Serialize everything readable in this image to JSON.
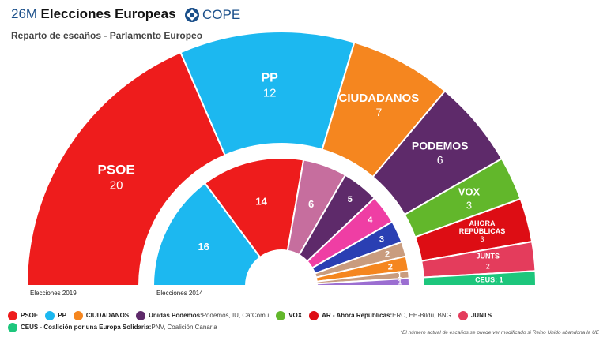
{
  "header": {
    "prefix": "26M",
    "title": "Elecciones Europeas",
    "logo_text": "COPE",
    "subtitle": "Reparto de escaños - Parlamento Europeo"
  },
  "chart_data": [
    {
      "type": "pie",
      "title": "Elecciones 2019",
      "series": [
        {
          "name": "PSOE",
          "value": 20,
          "color": "#ee1c1c"
        },
        {
          "name": "PP",
          "value": 12,
          "color": "#1cb8f0"
        },
        {
          "name": "CIUDADANOS",
          "value": 7,
          "color": "#f5861f"
        },
        {
          "name": "PODEMOS",
          "value": 6,
          "color": "#5e2a6a"
        },
        {
          "name": "VOX",
          "value": 3,
          "color": "#62b72b"
        },
        {
          "name": "AHORA REPÚBLICAS",
          "value": 3,
          "color": "#dd0d14"
        },
        {
          "name": "JUNTS",
          "value": 2,
          "color": "#e43c5c"
        },
        {
          "name": "CEUS",
          "value": 1,
          "color": "#1dc67c"
        }
      ]
    },
    {
      "type": "pie",
      "title": "Elecciones 2014",
      "values": [
        16,
        14,
        6,
        5,
        4,
        3,
        2,
        2,
        1,
        1
      ],
      "colors": [
        "#1cb8f0",
        "#ee1c1c",
        "#c66e9e",
        "#5e2a6a",
        "#ef3ea4",
        "#2a3fb3",
        "#c99c7e",
        "#f5861f",
        "#c99c7e",
        "#9b6ed1"
      ]
    }
  ],
  "legend": {
    "row1": [
      {
        "name": "PSOE",
        "detail": "",
        "color": "#ee1c1c"
      },
      {
        "name": "PP",
        "detail": "",
        "color": "#1cb8f0"
      },
      {
        "name": "CIUDADANOS",
        "detail": "",
        "color": "#f5861f"
      },
      {
        "name": "Unidas Podemos:",
        "detail": "Podemos, IU, CatComu",
        "color": "#5e2a6a"
      },
      {
        "name": "VOX",
        "detail": "",
        "color": "#62b72b"
      },
      {
        "name": "AR - Ahora Repúblicas:",
        "detail": "ERC, EH-Bildu, BNG",
        "color": "#dd0d14"
      },
      {
        "name": "JUNTS",
        "detail": "",
        "color": "#e43c5c"
      }
    ],
    "row2": [
      {
        "name": "CEUS - Coalición por una Europa Solidaria:",
        "detail": "PNV, Coalición Canaria",
        "color": "#1dc67c"
      }
    ]
  },
  "footnote": "*El número actual de escaños se puede ver modificado si Reino Unido abandona la UE"
}
